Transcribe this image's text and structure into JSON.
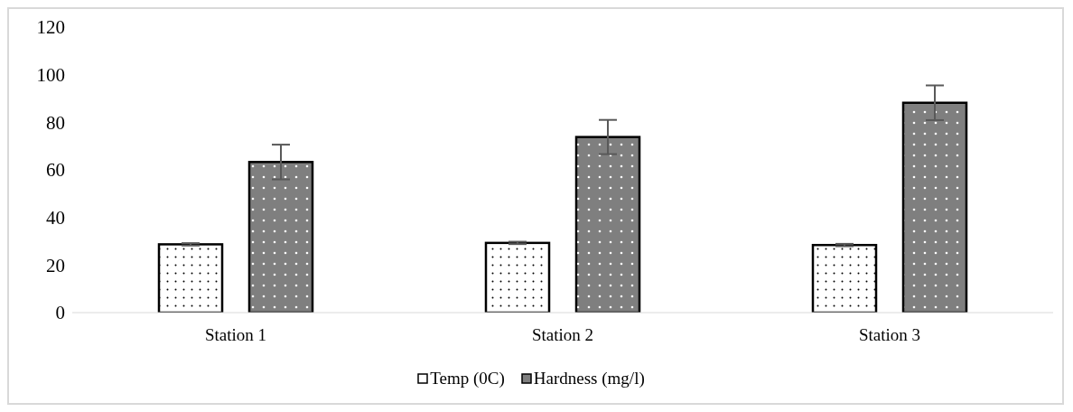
{
  "chart_data": {
    "type": "bar",
    "categories": [
      "Station 1",
      "Station 2",
      "Station 3"
    ],
    "series": [
      {
        "name": "Temp (0C)",
        "color": "#ffffff",
        "values": [
          28.7,
          29.3,
          28.4
        ],
        "errors": [
          0.5,
          0.5,
          0.5
        ]
      },
      {
        "name": "Hardness (mg/l)",
        "color": "#7f7f7f",
        "values": [
          63.3,
          73.8,
          88.2
        ],
        "errors": [
          7.3,
          7.2,
          7.3
        ]
      }
    ],
    "ylim": [
      0,
      120
    ],
    "yticks": [
      0,
      20,
      40,
      60,
      80,
      100,
      120
    ],
    "grid": false,
    "legend": "bottom"
  }
}
